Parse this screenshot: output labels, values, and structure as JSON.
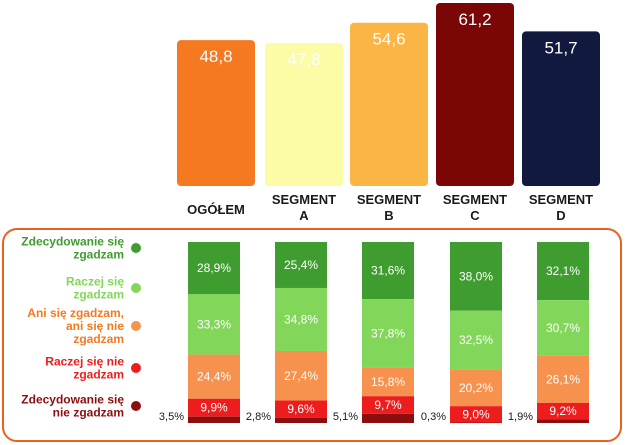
{
  "chart_data": [
    {
      "type": "bar",
      "title": "",
      "categories": [
        "OGÓŁEM",
        "SEGMENT A",
        "SEGMENT B",
        "SEGMENT C",
        "SEGMENT D"
      ],
      "category_lines": [
        [
          "OGÓŁEM"
        ],
        [
          "SEGMENT",
          "A"
        ],
        [
          "SEGMENT",
          "B"
        ],
        [
          "SEGMENT",
          "C"
        ],
        [
          "SEGMENT",
          "D"
        ]
      ],
      "values": [
        48.8,
        47.8,
        54.6,
        61.2,
        51.7
      ],
      "value_labels": [
        "48,8",
        "47,8",
        "54,6",
        "61,2",
        "51,7"
      ],
      "colors": [
        "#f47920",
        "#fdfca6",
        "#fbb544",
        "#7a0606",
        "#111a3e"
      ],
      "label_colors": [
        "#ffffff",
        "#1a1a1a",
        "#1a1a1a",
        "#ffffff",
        "#ffffff"
      ],
      "ylim": [
        0,
        61.2
      ],
      "xlabel": "",
      "ylabel": ""
    },
    {
      "type": "bar",
      "stacked": true,
      "percent": true,
      "categories": [
        "OGÓŁEM",
        "SEGMENT A",
        "SEGMENT B",
        "SEGMENT C",
        "SEGMENT D"
      ],
      "series": [
        {
          "name": "Zdecydowanie się zgadzam",
          "legend_lines": [
            "Zdecydowanie się",
            "zgadzam"
          ],
          "color": "#3f9c2e",
          "text_color": "#3f9c2e",
          "values": [
            28.9,
            25.4,
            31.6,
            38.0,
            32.1
          ],
          "labels": [
            "28,9%",
            "25,4%",
            "31,6%",
            "38,0%",
            "32,1%"
          ]
        },
        {
          "name": "Raczej się zgadzam",
          "legend_lines": [
            "Raczej się",
            "zgadzam"
          ],
          "color": "#82d75a",
          "text_color": "#82d75a",
          "values": [
            33.3,
            34.8,
            37.8,
            32.5,
            30.7
          ],
          "labels": [
            "33,3%",
            "34,8%",
            "37,8%",
            "32,5%",
            "30,7%"
          ]
        },
        {
          "name": "Ani się zgadzam, ani się nie zgadzam",
          "legend_lines": [
            "Ani się zgadzam,",
            "ani się nie",
            "zgadzam"
          ],
          "color": "#f6914e",
          "text_color": "#f47920",
          "values": [
            24.4,
            27.4,
            15.8,
            20.2,
            26.1
          ],
          "labels": [
            "24,4%",
            "27,4%",
            "15,8%",
            "20,2%",
            "26,1%"
          ]
        },
        {
          "name": "Raczej się nie zgadzam",
          "legend_lines": [
            "Raczej się nie",
            "zgadzam"
          ],
          "color": "#ee1d1d",
          "text_color": "#ee1d1d",
          "values": [
            9.9,
            9.6,
            9.7,
            9.0,
            9.2
          ],
          "labels": [
            "9,9%",
            "9,6%",
            "9,7%",
            "9,0%",
            "9,2%"
          ]
        },
        {
          "name": "Zdecydowanie się nie zgadzam",
          "legend_lines": [
            "Zdecydowanie się",
            "nie zgadzam"
          ],
          "color": "#8b0f0f",
          "text_color": "#8b0f0f",
          "values": [
            3.5,
            2.8,
            5.1,
            0.3,
            1.9
          ],
          "labels": [
            "3,5%",
            "2,8%",
            "5,1%",
            "0,3%",
            "1,9%"
          ]
        }
      ],
      "frame_color": "#e8621e",
      "ylim": [
        0,
        100
      ]
    }
  ]
}
